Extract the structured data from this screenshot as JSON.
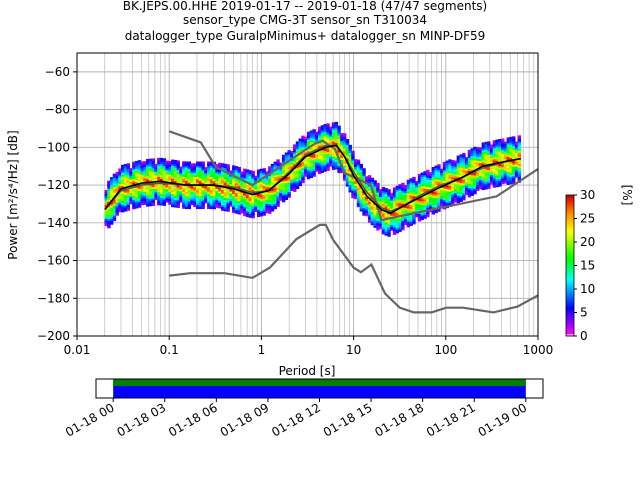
{
  "header": {
    "line1": "BK.JEPS.00.HHE   2019-01-17 -- 2019-01-18  (47/47 segments)",
    "line2": "sensor_type CMG-3T sensor_sn T310034",
    "line3": "datalogger_type GuralpMinimus+ datalogger_sn MINP-DF59"
  },
  "chart_data": [
    {
      "type": "heatmap",
      "name": "ppsd",
      "xlabel": "Period [s]",
      "ylabel": "Power [m²/s⁴/Hz] [dB]",
      "x_scale": "log",
      "xlim": [
        0.01,
        1000
      ],
      "ylim": [
        -200,
        -50
      ],
      "grid": true,
      "xticks": [
        {
          "v": 0.01,
          "label": "0.01"
        },
        {
          "v": 0.1,
          "label": "0.1"
        },
        {
          "v": 1,
          "label": "1"
        },
        {
          "v": 10,
          "label": "10"
        },
        {
          "v": 100,
          "label": "100"
        },
        {
          "v": 1000,
          "label": "1000"
        }
      ],
      "yticks": [
        -60,
        -80,
        -100,
        -120,
        -140,
        -160,
        -180,
        -200
      ],
      "noise_models": [
        {
          "name": "NHNM",
          "color": "#666666",
          "points": [
            [
              0.1,
              -91.5
            ],
            [
              0.22,
              -97.4
            ],
            [
              0.32,
              -110.5
            ],
            [
              0.8,
              -120
            ],
            [
              3.8,
              -98
            ],
            [
              4.6,
              -96.5
            ],
            [
              6.3,
              -101
            ],
            [
              7.9,
              -113.5
            ],
            [
              15.4,
              -120
            ],
            [
              20,
              -138.5
            ],
            [
              354.8,
              -126
            ],
            [
              1000,
              -111.5
            ]
          ]
        },
        {
          "name": "NLNM",
          "color": "#666666",
          "points": [
            [
              0.1,
              -168
            ],
            [
              0.17,
              -166.7
            ],
            [
              0.4,
              -166.7
            ],
            [
              0.8,
              -169.2
            ],
            [
              1.24,
              -163.7
            ],
            [
              2.4,
              -148.6
            ],
            [
              4.3,
              -141.1
            ],
            [
              5.0,
              -141.1
            ],
            [
              6.0,
              -149
            ],
            [
              10,
              -163.8
            ],
            [
              12,
              -166.2
            ],
            [
              15.6,
              -162.1
            ],
            [
              21.9,
              -177.5
            ],
            [
              31.6,
              -185
            ],
            [
              45,
              -187.5
            ],
            [
              70,
              -187.5
            ],
            [
              101,
              -185
            ],
            [
              154,
              -185
            ],
            [
              328,
              -187.5
            ],
            [
              600,
              -184.4
            ],
            [
              1000,
              -178.5
            ]
          ]
        }
      ],
      "mode_curve": {
        "color": "#000000",
        "points": [
          [
            0.02,
            -133
          ],
          [
            0.03,
            -122
          ],
          [
            0.05,
            -119
          ],
          [
            0.08,
            -118
          ],
          [
            0.15,
            -120
          ],
          [
            0.3,
            -120
          ],
          [
            0.5,
            -122
          ],
          [
            0.8,
            -125
          ],
          [
            1.2,
            -123
          ],
          [
            2,
            -114
          ],
          [
            3,
            -105
          ],
          [
            5,
            -100
          ],
          [
            6.5,
            -99
          ],
          [
            8,
            -105
          ],
          [
            10,
            -115
          ],
          [
            14,
            -126
          ],
          [
            20,
            -133
          ],
          [
            25,
            -135
          ],
          [
            35,
            -131
          ],
          [
            50,
            -127
          ],
          [
            80,
            -122
          ],
          [
            150,
            -116
          ],
          [
            250,
            -110
          ],
          [
            500,
            -107
          ],
          [
            650,
            -106
          ]
        ]
      },
      "mean_curve": {
        "color": "#555555",
        "points": [
          [
            0.02,
            -133
          ],
          [
            0.03,
            -123
          ],
          [
            0.05,
            -120
          ],
          [
            0.08,
            -119
          ],
          [
            0.15,
            -120
          ],
          [
            0.3,
            -120
          ],
          [
            0.5,
            -121
          ],
          [
            0.8,
            -124
          ],
          [
            1.2,
            -123
          ],
          [
            2,
            -113
          ],
          [
            3,
            -104
          ],
          [
            5,
            -99
          ],
          [
            6.5,
            -99
          ],
          [
            8,
            -105
          ],
          [
            10,
            -113
          ],
          [
            14,
            -124
          ],
          [
            20,
            -132
          ],
          [
            25,
            -134
          ],
          [
            35,
            -131
          ],
          [
            50,
            -126
          ],
          [
            80,
            -121
          ],
          [
            150,
            -116
          ],
          [
            250,
            -111
          ],
          [
            500,
            -107
          ],
          [
            650,
            -106
          ]
        ]
      },
      "colorbar": {
        "label": "[%]",
        "min": 0,
        "max": 30,
        "ticks": [
          0,
          5,
          10,
          15,
          20,
          25,
          30
        ]
      }
    },
    {
      "type": "bar",
      "name": "data-availability",
      "x_type": "time",
      "xlim": [
        "2019-01-17 23:00",
        "2019-01-19 01:00"
      ],
      "bars": [
        {
          "name": "data",
          "start": "2019-01-18 00:00",
          "end": "2019-01-19 00:00",
          "color": "#0000ff"
        },
        {
          "name": "psd",
          "start": "2019-01-18 00:00",
          "end": "2019-01-19 00:00",
          "color": "#008000"
        }
      ],
      "xticks": [
        {
          "v": "2019-01-18 00:00",
          "label": "01-18 00"
        },
        {
          "v": "2019-01-18 03:00",
          "label": "01-18 03"
        },
        {
          "v": "2019-01-18 06:00",
          "label": "01-18 06"
        },
        {
          "v": "2019-01-18 09:00",
          "label": "01-18 09"
        },
        {
          "v": "2019-01-18 12:00",
          "label": "01-18 12"
        },
        {
          "v": "2019-01-18 15:00",
          "label": "01-18 15"
        },
        {
          "v": "2019-01-18 18:00",
          "label": "01-18 18"
        },
        {
          "v": "2019-01-18 21:00",
          "label": "01-18 21"
        },
        {
          "v": "2019-01-19 00:00",
          "label": "01-19 00"
        }
      ]
    }
  ]
}
